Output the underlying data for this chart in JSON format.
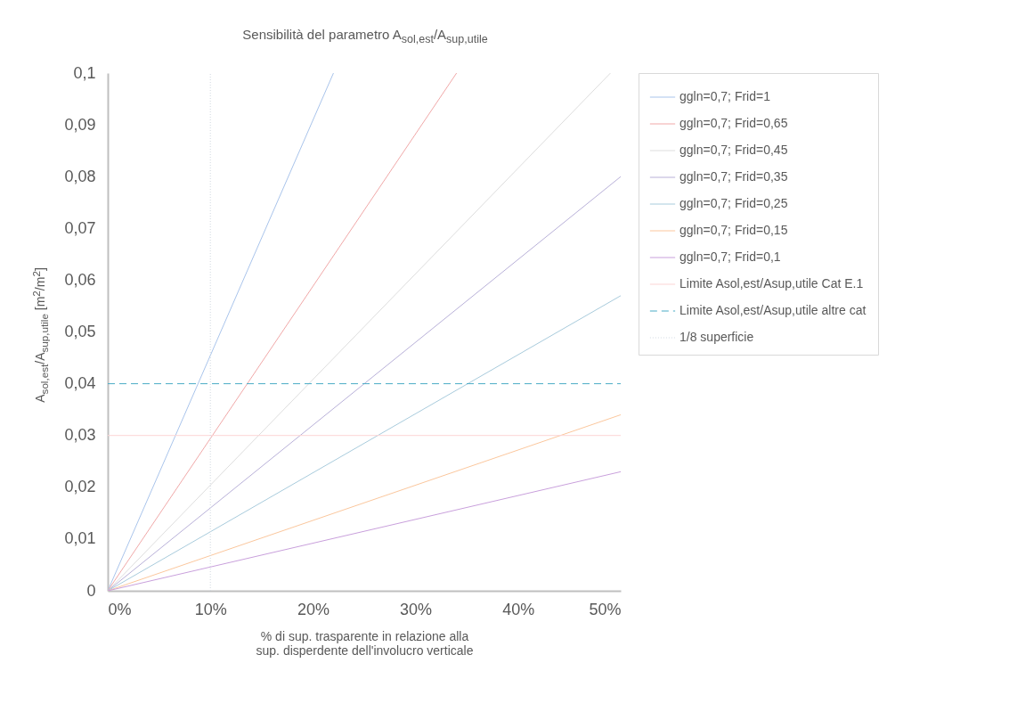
{
  "chart_data": {
    "type": "line",
    "title": "Sensibilità del parametro A$_{sol,est}$/A$_{sup,utile}$",
    "xlabel": "% di sup. trasparente in relazione alla\nsup. disperdente dell'involucro verticale",
    "ylabel": "A$_{sol,est}$/A$_{sup,utile}$ [m$^{2}$/m$^{2}$]",
    "xlim": [
      0,
      0.5
    ],
    "ylim": [
      0,
      0.1
    ],
    "xticks": [
      {
        "value": 0,
        "label": "0%"
      },
      {
        "value": 0.1,
        "label": "10%"
      },
      {
        "value": 0.2,
        "label": "20%"
      },
      {
        "value": 0.3,
        "label": "30%"
      },
      {
        "value": 0.4,
        "label": "40%"
      },
      {
        "value": 0.5,
        "label": "50%"
      }
    ],
    "yticks": [
      0,
      {
        "value": 0.01,
        "label": "0,01"
      },
      {
        "value": 0.02,
        "label": "0,02"
      },
      {
        "value": 0.03,
        "label": "0,03"
      },
      {
        "value": 0.04,
        "label": "0,04"
      },
      {
        "value": 0.05,
        "label": "0,05"
      },
      {
        "value": 0.06,
        "label": "0,06"
      },
      {
        "value": 0.07,
        "label": "0,07"
      },
      {
        "value": 0.08,
        "label": "0,08"
      },
      {
        "value": 0.09,
        "label": "0,09"
      },
      {
        "value": 0.1,
        "label": "0,1"
      }
    ],
    "grid": false,
    "legend": "right",
    "series": [
      {
        "name": "ggln=0,7; Frid=1",
        "color": "#a9c4eb",
        "x": [
          0,
          0.22
        ],
        "values": [
          0,
          0.1
        ]
      },
      {
        "name": "ggln=0,7; Frid=0,65",
        "color": "#f0a8a8",
        "x": [
          0,
          0.34
        ],
        "values": [
          0,
          0.1
        ]
      },
      {
        "name": "ggln=0,7; Frid=0,45",
        "color": "#dddddd",
        "x": [
          0,
          0.49
        ],
        "values": [
          0,
          0.1
        ]
      },
      {
        "name": "ggln=0,7; Frid=0,35",
        "color": "#b8b0d8",
        "x": [
          0,
          0.5
        ],
        "values": [
          0,
          0.08
        ]
      },
      {
        "name": "ggln=0,7; Frid=0,25",
        "color": "#a8cbdc",
        "x": [
          0,
          0.5
        ],
        "values": [
          0,
          0.057
        ]
      },
      {
        "name": "ggln=0,7; Frid=0,15",
        "color": "#fbc79d",
        "x": [
          0,
          0.5
        ],
        "values": [
          0,
          0.034
        ]
      },
      {
        "name": "ggln=0,7; Frid=0,1",
        "color": "#c9a0dc",
        "x": [
          0,
          0.5
        ],
        "values": [
          0,
          0.023
        ]
      },
      {
        "name": "Limite Asol,est/Asup,utile Cat E.1",
        "color": "#fcd5d5",
        "x": [
          0,
          0.5
        ],
        "values": [
          0.03,
          0.03
        ]
      },
      {
        "name": "Limite Asol,est/Asup,utile altre cat",
        "color": "#4bacc6",
        "x": [
          0,
          0.5
        ],
        "values": [
          0.04,
          0.04
        ],
        "line_style": "dashed"
      },
      {
        "name": "1/8 superficie",
        "color": "#d0d8e0",
        "x": [
          0.1,
          0.1
        ],
        "values": [
          0,
          0.1
        ],
        "line_style": "dotted"
      }
    ]
  }
}
